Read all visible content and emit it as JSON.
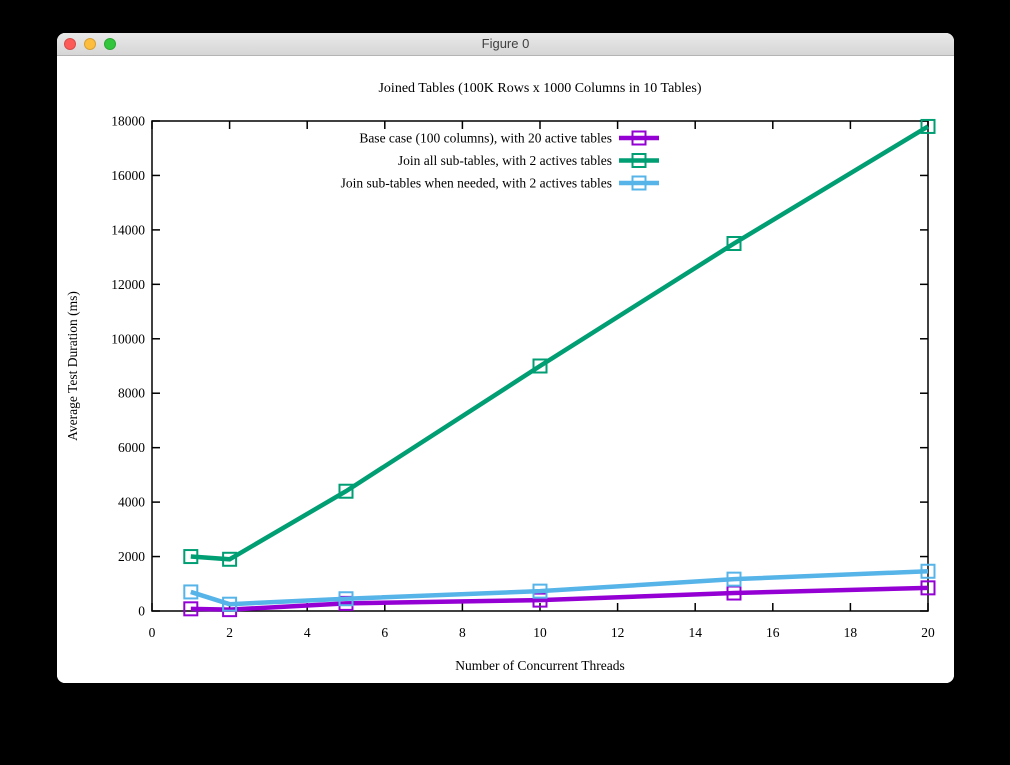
{
  "window": {
    "title": "Figure 0",
    "controls": {
      "close_color": "#fc5b57",
      "minimize_color": "#fdbd3f",
      "zoom_color": "#32c63c"
    }
  },
  "chart_data": {
    "type": "line",
    "title": "Joined Tables (100K Rows x 1000 Columns in 10 Tables)",
    "xlabel": "Number of Concurrent Threads",
    "ylabel": "Average Test Duration (ms)",
    "xlim": [
      0,
      20
    ],
    "ylim": [
      0,
      18000
    ],
    "xticks": [
      0,
      2,
      4,
      6,
      8,
      10,
      12,
      14,
      16,
      18,
      20
    ],
    "yticks": [
      0,
      2000,
      4000,
      6000,
      8000,
      10000,
      12000,
      14000,
      16000,
      18000
    ],
    "x": [
      1,
      2,
      5,
      10,
      15,
      20
    ],
    "series": [
      {
        "name": "Base case (100 columns), with 20 active tables",
        "color": "#9400d3",
        "values": [
          80,
          50,
          280,
          400,
          660,
          850
        ]
      },
      {
        "name": "Join all sub-tables, with 2 actives tables",
        "color": "#009e73",
        "values": [
          2000,
          1900,
          4400,
          9000,
          13500,
          17800
        ]
      },
      {
        "name": "Join sub-tables when needed, with 2 actives tables",
        "color": "#56b4e9",
        "values": [
          700,
          250,
          450,
          730,
          1170,
          1460
        ]
      }
    ],
    "legend_position": "top-inside",
    "marker": "open-square",
    "grid": false
  }
}
